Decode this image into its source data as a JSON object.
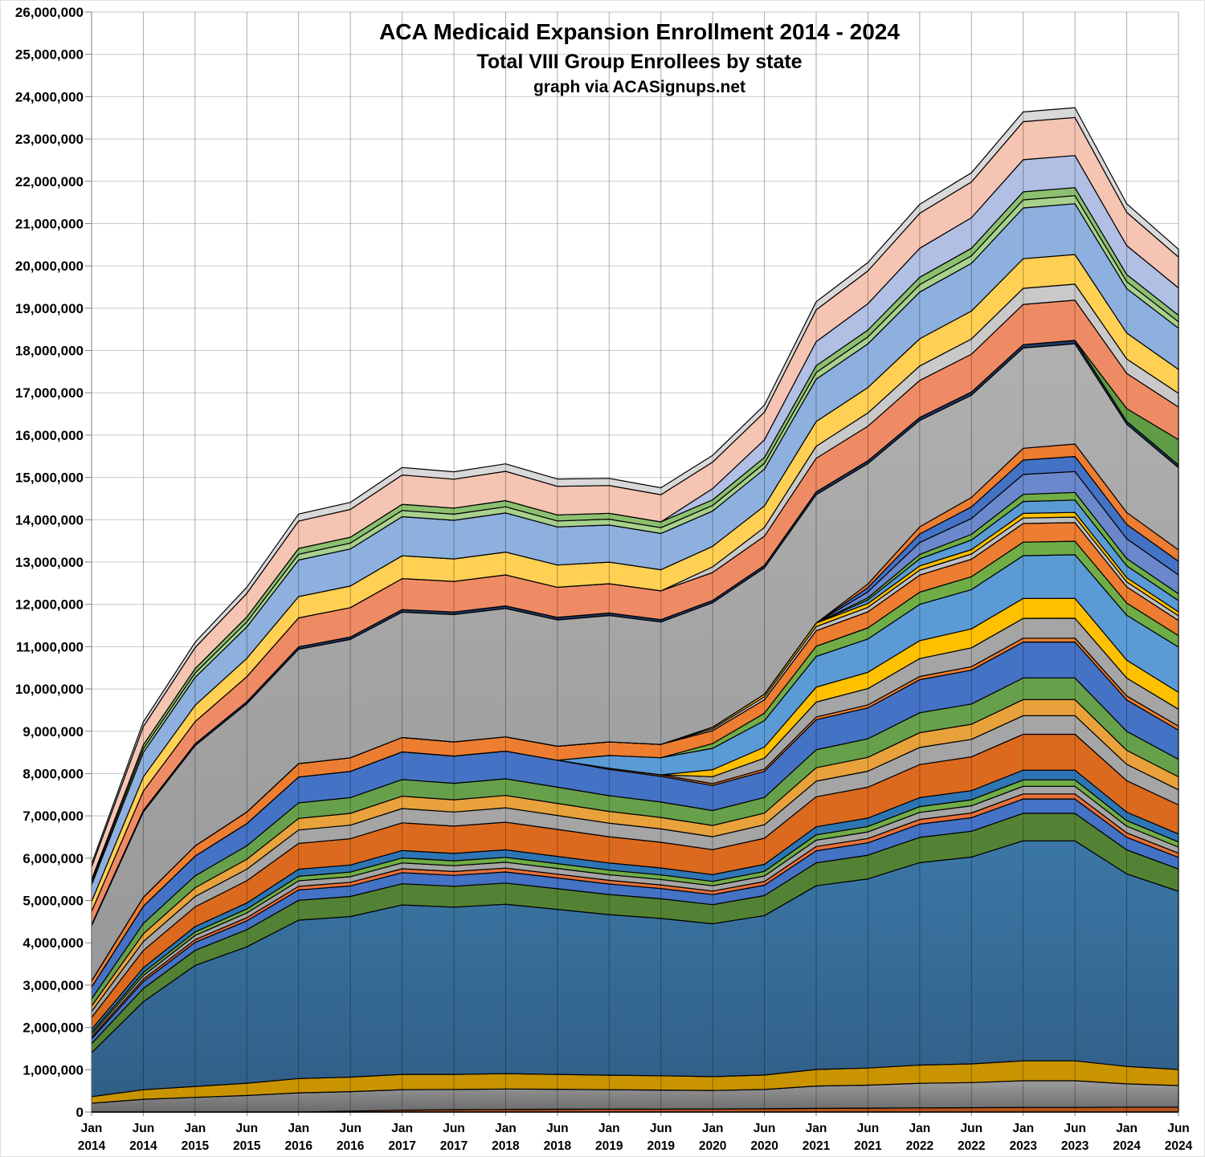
{
  "page": {
    "background": "#FFFFFF",
    "border_color": "#E0E0E0"
  },
  "chart_data": {
    "type": "area",
    "stacked": true,
    "title": "ACA Medicaid Expansion Enrollment 2014 - 2024",
    "subtitle": "Total VIII Group Enrollees by state",
    "credit": "graph via ACASignups.net",
    "legend": "none",
    "grid": {
      "horizontal": true,
      "vertical": true
    },
    "x_labels": [
      "Jan 2014",
      "Jun 2014",
      "Jan 2015",
      "Jun 2015",
      "Jan 2016",
      "Jun 2016",
      "Jan 2017",
      "Jun 2017",
      "Jan 2018",
      "Jun 2018",
      "Jan 2019",
      "Jun 2019",
      "Jan 2020",
      "Jun 2020",
      "Jan 2021",
      "Jun 2021",
      "Jan 2022",
      "Jun 2022",
      "Jan 2023",
      "Jun 2023",
      "Jan 2024",
      "Jun 2024"
    ],
    "y_axis": {
      "min": 0,
      "max": 26000000,
      "step": 1000000
    },
    "totals_millions_estimate": [
      6.2,
      9.4,
      11.2,
      12.5,
      14.2,
      14.5,
      15.35,
      15.2,
      15.35,
      15.0,
      15.1,
      14.85,
      15.3,
      16.35,
      18.7,
      19.8,
      21.4,
      22.2,
      23.7,
      23.8,
      21.6,
      20.4
    ],
    "style": {
      "h_grid_color": "#C8C8C8",
      "v_grid_overlay": "rgba(0,0,0,0.32)",
      "axis_color": "#7F7F7F",
      "band_outline": "#000000"
    },
    "profiles": {
      "common": [
        0.33,
        0.48,
        0.55,
        0.62,
        0.72,
        0.73,
        0.77,
        0.76,
        0.77,
        0.75,
        0.73,
        0.715,
        0.695,
        0.725,
        0.835,
        0.86,
        0.92,
        0.94,
        1,
        1,
        0.875,
        0.81
      ],
      "california": [
        0.2,
        0.4,
        0.55,
        0.62,
        0.72,
        0.73,
        0.77,
        0.76,
        0.77,
        0.75,
        0.73,
        0.715,
        0.695,
        0.725,
        0.835,
        0.86,
        0.92,
        0.94,
        1,
        1,
        0.875,
        0.81
      ],
      "grayBig": [
        0.55,
        0.85,
        1,
        1.08,
        1.14,
        1.18,
        1.25,
        1.27,
        1.28,
        1.26,
        1.26,
        1.22,
        1.24,
        1.26,
        1.28,
        1.2,
        1.06,
        1.02,
        1,
        1,
        0.88,
        0.82
      ],
      "late2019": [
        0,
        0,
        0,
        0,
        0,
        0,
        0,
        0,
        0,
        0,
        0.3,
        0.4,
        0.5,
        0.62,
        0.72,
        0.78,
        0.85,
        0.92,
        1,
        1.02,
        1.05,
        1.06
      ],
      "late2020": [
        0,
        0,
        0,
        0,
        0,
        0,
        0,
        0,
        0,
        0,
        0,
        0,
        0.35,
        0.55,
        0.75,
        0.82,
        0.9,
        0.95,
        1,
        1,
        0.9,
        0.85
      ],
      "late2021": [
        0,
        0,
        0,
        0,
        0,
        0,
        0,
        0,
        0,
        0,
        0,
        0,
        0,
        0,
        0,
        0.3,
        0.6,
        0.8,
        1,
        1.05,
        1,
        0.95
      ],
      "late2023": [
        0,
        0,
        0,
        0,
        0,
        0,
        0,
        0,
        0,
        0,
        0,
        0,
        0,
        0,
        0,
        0,
        0,
        0,
        0,
        0,
        0.5,
        1
      ],
      "bottom": [
        0,
        0,
        0,
        0,
        0,
        0.2,
        0.4,
        0.5,
        0.55,
        0.6,
        0.62,
        0.64,
        0.66,
        0.7,
        0.8,
        0.85,
        0.9,
        0.95,
        1,
        1,
        1.05,
        1.05
      ]
    },
    "series": [
      {
        "name": "band-01-rust",
        "color": "#B4541B",
        "peak": 0.11,
        "profile": "bottom"
      },
      {
        "name": "band-02-dark-gray",
        "color": "#9C9C9C",
        "color2": "#6A6A6A",
        "peak": 0.63,
        "profile": "common"
      },
      {
        "name": "band-03-dark-gold",
        "color": "#C99400",
        "peak": 0.47,
        "profile": "common"
      },
      {
        "name": "band-04-steel-blue",
        "color": "#3B77A6",
        "color2": "#305F87",
        "peak": 5.2,
        "profile": "california"
      },
      {
        "name": "band-05-green",
        "color": "#548235",
        "peak": 0.65,
        "profile": "common"
      },
      {
        "name": "band-06-royal-blue",
        "color": "#4472C4",
        "peak": 0.34,
        "profile": "common"
      },
      {
        "name": "band-07-salmon",
        "color": "#E8703A",
        "peak": 0.12,
        "profile": "common"
      },
      {
        "name": "band-08-gray",
        "color": "#A5A5A5",
        "peak": 0.18,
        "profile": "common"
      },
      {
        "name": "band-09-green",
        "color": "#70AD47",
        "peak": 0.15,
        "profile": "common"
      },
      {
        "name": "band-10-blue",
        "color": "#2E75B6",
        "peak": 0.23,
        "profile": "common"
      },
      {
        "name": "band-11-dark-orange",
        "color": "#DC6A1E",
        "peak": 0.85,
        "profile": "common"
      },
      {
        "name": "band-12-gray",
        "color": "#A5A5A5",
        "peak": 0.44,
        "profile": "common"
      },
      {
        "name": "band-13-amber",
        "color": "#E9A23B",
        "peak": 0.38,
        "profile": "common"
      },
      {
        "name": "band-14-green",
        "color": "#67A04B",
        "peak": 0.51,
        "profile": "common"
      },
      {
        "name": "band-15-royal-blue",
        "color": "#4472C4",
        "peak": 0.85,
        "profile": "common"
      },
      {
        "name": "band-16-orange",
        "color": "#ED7D31",
        "peak": 0.09,
        "profile": "late2019"
      },
      {
        "name": "band-17-gray",
        "color": "#A5A5A5",
        "peak": 0.47,
        "profile": "late2020"
      },
      {
        "name": "band-18-gold",
        "color": "#FFC000",
        "peak": 0.47,
        "profile": "late2020"
      },
      {
        "name": "band-19-sky-blue",
        "color": "#5B9BD5",
        "peak": 1.01,
        "profile": "late2019"
      },
      {
        "name": "band-20-green",
        "color": "#70AD47",
        "peak": 0.32,
        "profile": "late2020"
      },
      {
        "name": "band-21-orange",
        "color": "#ED7D31",
        "peak": 0.44,
        "profile": "common"
      },
      {
        "name": "band-22-gray",
        "color": "#BFBFBF",
        "peak": 0.13,
        "profile": "late2020"
      },
      {
        "name": "band-23-gold",
        "color": "#FFC000",
        "peak": 0.11,
        "profile": "late2020"
      },
      {
        "name": "band-24-sky-blue",
        "color": "#5B9BD5",
        "peak": 0.28,
        "profile": "late2021"
      },
      {
        "name": "band-25-green",
        "color": "#70AD47",
        "peak": 0.17,
        "profile": "late2021"
      },
      {
        "name": "band-26-periwinkle",
        "color": "#6B88CC",
        "peak": 0.47,
        "profile": "late2021"
      },
      {
        "name": "band-27-royal-blue",
        "color": "#4472C4",
        "peak": 0.34,
        "profile": "late2021"
      },
      {
        "name": "band-28-orange",
        "color": "#ED7D31",
        "peak": 0.28,
        "profile": "late2021"
      },
      {
        "name": "band-29-big-gray",
        "color": "#B0B0B0",
        "color2": "#989898",
        "peak": 2.37,
        "profile": "grayBig"
      },
      {
        "name": "band-30-navy",
        "color": "#1F3864",
        "peak": 0.08,
        "profile": "common"
      },
      {
        "name": "band-31-green",
        "color": "#5F9C44",
        "peak": 0.6,
        "profile": "late2023"
      },
      {
        "name": "band-32-coral",
        "color": "#EF8B64",
        "peak": 0.95,
        "profile": "common"
      },
      {
        "name": "band-33-light-gray",
        "color": "#C9C9C9",
        "peak": 0.38,
        "profile": "late2020"
      },
      {
        "name": "band-34-light-gold",
        "color": "#FFD054",
        "peak": 0.7,
        "profile": "common"
      },
      {
        "name": "band-35-cornflower",
        "color": "#8DB0DE",
        "peak": 1.2,
        "profile": "common"
      },
      {
        "name": "band-36-light-green",
        "color": "#A9D18E",
        "peak": 0.19,
        "profile": "common"
      },
      {
        "name": "band-37-green",
        "color": "#8CC070",
        "peak": 0.19,
        "profile": "common"
      },
      {
        "name": "band-38-lavender",
        "color": "#B1BFE5",
        "peak": 0.76,
        "profile": "late2020"
      },
      {
        "name": "band-39-pink",
        "color": "#F5C4B2",
        "peak": 0.9,
        "profile": "common"
      },
      {
        "name": "band-40-silver",
        "color": "#D9D9D9",
        "peak": 0.23,
        "profile": "common"
      }
    ]
  }
}
